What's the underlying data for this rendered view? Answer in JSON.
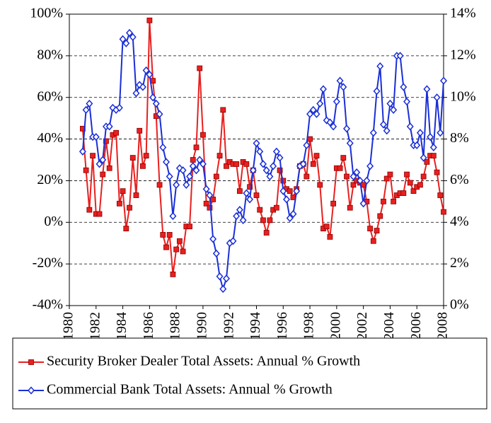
{
  "chart_data": {
    "type": "line",
    "x": [
      1981,
      1981.25,
      1981.5,
      1981.75,
      1982,
      1982.25,
      1982.5,
      1982.75,
      1983,
      1983.25,
      1983.5,
      1983.75,
      1984,
      1984.25,
      1984.5,
      1984.75,
      1985,
      1985.25,
      1985.5,
      1985.75,
      1986,
      1986.25,
      1986.5,
      1986.75,
      1987,
      1987.25,
      1987.5,
      1987.75,
      1988,
      1988.25,
      1988.5,
      1988.75,
      1989,
      1989.25,
      1989.5,
      1989.75,
      1990,
      1990.25,
      1990.5,
      1990.75,
      1991,
      1991.25,
      1991.5,
      1991.75,
      1992,
      1992.25,
      1992.5,
      1992.75,
      1993,
      1993.25,
      1993.5,
      1993.75,
      1994,
      1994.25,
      1994.5,
      1994.75,
      1995,
      1995.25,
      1995.5,
      1995.75,
      1996,
      1996.25,
      1996.5,
      1996.75,
      1997,
      1997.25,
      1997.5,
      1997.75,
      1998,
      1998.25,
      1998.5,
      1998.75,
      1999,
      1999.25,
      1999.5,
      1999.75,
      2000,
      2000.25,
      2000.5,
      2000.75,
      2001,
      2001.25,
      2001.5,
      2001.75,
      2002,
      2002.25,
      2002.5,
      2002.75,
      2003,
      2003.25,
      2003.5,
      2003.75,
      2004,
      2004.25,
      2004.5,
      2004.75,
      2005,
      2005.25,
      2005.5,
      2005.75,
      2006,
      2006.25,
      2006.5,
      2006.75,
      2007,
      2007.25,
      2007.5,
      2007.75,
      2008
    ],
    "xlim": [
      1980,
      2008
    ],
    "xticks": [
      1980,
      1982,
      1984,
      1986,
      1988,
      1990,
      1992,
      1994,
      1996,
      1998,
      2000,
      2002,
      2004,
      2006,
      2008
    ],
    "ylim": [
      -40,
      100
    ],
    "yticks": [
      {
        "value": -40,
        "label": "-40%"
      },
      {
        "value": -20,
        "label": "-20%"
      },
      {
        "value": 0,
        "label": "0%"
      },
      {
        "value": 20,
        "label": "20%"
      },
      {
        "value": 40,
        "label": "40%"
      },
      {
        "value": 60,
        "label": "60%"
      },
      {
        "value": 80,
        "label": "80%"
      },
      {
        "value": 100,
        "label": "100%"
      }
    ],
    "y2lim": [
      0,
      14
    ],
    "y2ticks": [
      {
        "value": 0,
        "label": "0%"
      },
      {
        "value": 2,
        "label": "2%"
      },
      {
        "value": 4,
        "label": "4%"
      },
      {
        "value": 6,
        "label": "6%"
      },
      {
        "value": 8,
        "label": "8%"
      },
      {
        "value": 10,
        "label": "10%"
      },
      {
        "value": 12,
        "label": "12%"
      },
      {
        "value": 14,
        "label": "14%"
      }
    ],
    "grid": true,
    "legend": "bottom",
    "series": [
      {
        "name": "Security Broker Dealer Total Assets: Annual % Growth",
        "color": "#e8201f",
        "marker": "square",
        "values": [
          45,
          25,
          6,
          32,
          4,
          4,
          23,
          39,
          26,
          42,
          43,
          9,
          15,
          -3,
          7,
          31,
          13,
          44,
          27,
          32,
          97,
          68,
          51,
          18,
          -6,
          -12,
          -6,
          -25,
          -13,
          -9,
          -14,
          -2,
          -2,
          30,
          36,
          74,
          42,
          9,
          7,
          11,
          22,
          32,
          54,
          27,
          29,
          28,
          28,
          15,
          29,
          28,
          17,
          25,
          13,
          6,
          1,
          -5,
          1,
          6,
          7,
          25,
          20,
          16,
          15,
          12,
          16,
          27,
          28,
          22,
          40,
          28,
          32,
          18,
          -3,
          -2,
          -7,
          9,
          26,
          26,
          31,
          22,
          7,
          18,
          20,
          19,
          18,
          10,
          -3,
          -9,
          -4,
          3,
          10,
          21,
          23,
          10,
          13,
          14,
          14,
          23,
          19,
          15,
          17,
          18,
          22,
          29,
          32,
          32,
          24,
          13,
          5
        ]
      },
      {
        "name": "Commercial Bank Total Assets: Annual % Growth",
        "color": "#1a2fd6",
        "marker": "diamond",
        "axis": "y2",
        "values": [
          7.4,
          9.4,
          9.7,
          8.1,
          8.1,
          6.8,
          7.0,
          8.6,
          8.6,
          9.5,
          9.4,
          9.5,
          12.8,
          12.6,
          13.1,
          12.9,
          10.2,
          10.6,
          10.5,
          11.3,
          11.1,
          10.0,
          9.7,
          9.2,
          7.6,
          6.9,
          6.2,
          4.3,
          5.8,
          6.6,
          6.5,
          5.8,
          6.2,
          6.7,
          6.5,
          7.0,
          6.8,
          5.6,
          5.3,
          3.2,
          2.5,
          1.4,
          0.8,
          1.3,
          3.0,
          3.1,
          4.3,
          4.6,
          4.1,
          5.4,
          5.1,
          6.5,
          7.8,
          7.4,
          6.8,
          6.5,
          6.2,
          6.7,
          7.4,
          7.1,
          5.5,
          5.1,
          4.2,
          4.4,
          5.5,
          6.7,
          6.8,
          7.7,
          9.2,
          9.4,
          9.2,
          9.7,
          10.4,
          8.9,
          8.8,
          8.6,
          9.8,
          10.8,
          10.5,
          8.5,
          7.8,
          6.2,
          6.4,
          6.0,
          4.9,
          6.0,
          6.7,
          8.3,
          10.3,
          11.5,
          8.7,
          8.4,
          9.7,
          9.4,
          12.0,
          12.0,
          10.5,
          9.8,
          8.6,
          7.7,
          7.7,
          8.3,
          7.1,
          10.4,
          8.1,
          7.6,
          10.0,
          8.3,
          10.8
        ]
      }
    ]
  }
}
